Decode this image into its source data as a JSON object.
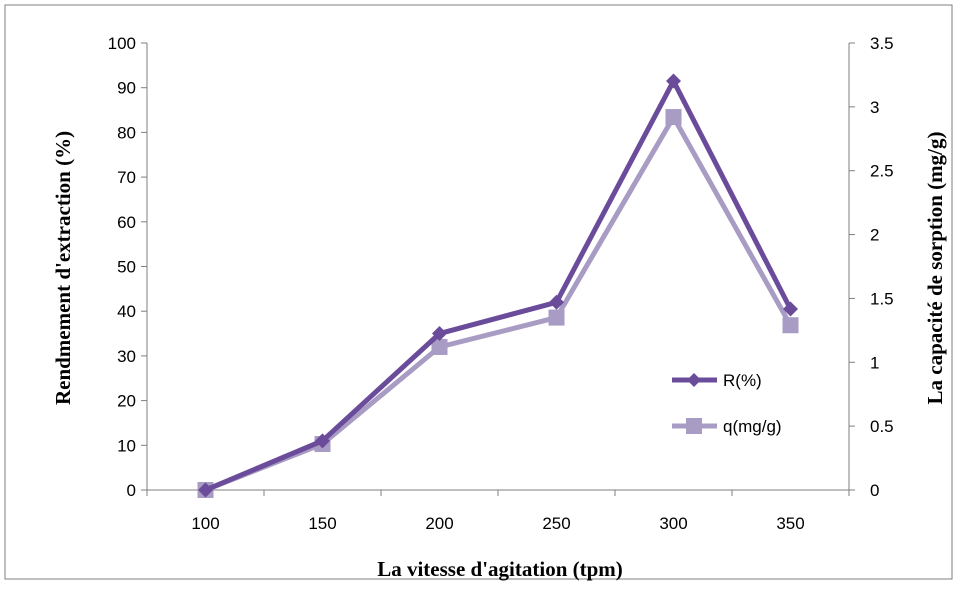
{
  "chart_data": {
    "type": "line",
    "title": "",
    "xlabel": "La vitesse d'agitation (tpm)",
    "ylabel": "Rendmement  d'extraction  (%)",
    "y2label": "La capacité de sorption (mg/g)",
    "x": [
      100,
      150,
      200,
      250,
      300,
      350
    ],
    "xlim": [
      75,
      375
    ],
    "ylim": [
      0,
      100
    ],
    "y2lim": [
      0,
      3.5
    ],
    "x_ticks": [
      "100",
      "150",
      "200",
      "250",
      "300",
      "350"
    ],
    "y_ticks": [
      "0",
      "10",
      "20",
      "30",
      "40",
      "50",
      "60",
      "70",
      "80",
      "90",
      "100"
    ],
    "y2_ticks": [
      "0",
      "0.5",
      "1",
      "1.5",
      "2",
      "2.5",
      "3",
      "3.5"
    ],
    "grid": false,
    "legend_position": "right",
    "series": [
      {
        "name": "R(%)",
        "axis": "left",
        "values": [
          0,
          11,
          35,
          42,
          91.5,
          40.5
        ],
        "color": "#6B4C9A",
        "marker": "diamond"
      },
      {
        "name": "q(mg/g)",
        "axis": "right",
        "values": [
          0,
          0.36,
          1.12,
          1.35,
          2.92,
          1.29
        ],
        "color": "#A89BC4",
        "marker": "square"
      }
    ]
  },
  "colors": {
    "axis": "#7F7F7F",
    "frame": "#7F7F7F",
    "background": "#FFFFFF"
  }
}
